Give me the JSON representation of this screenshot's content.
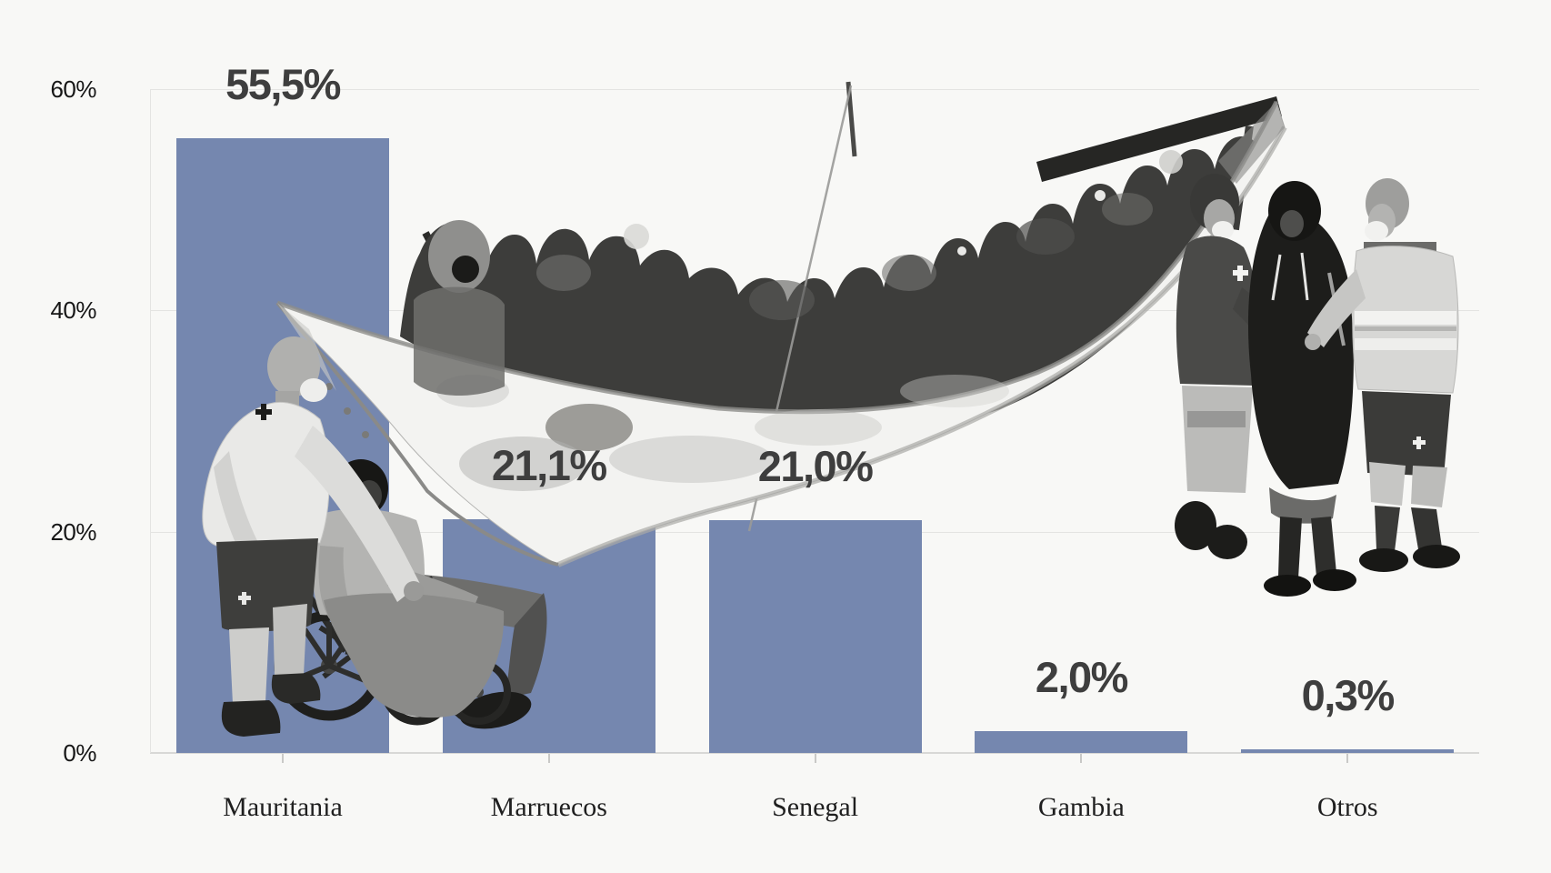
{
  "page": {
    "background": "#f8f8f6"
  },
  "chart_data": {
    "type": "bar",
    "categories": [
      "Mauritania",
      "Marruecos",
      "Senegal",
      "Gambia",
      "Otros"
    ],
    "values": [
      55.5,
      21.1,
      21.0,
      2.0,
      0.3
    ],
    "value_labels": [
      "55,5%",
      "21,1%",
      "21,0%",
      "2,0%",
      "0,3%"
    ],
    "y_ticks": [
      {
        "value": 0,
        "label": "0%"
      },
      {
        "value": 20,
        "label": "20%"
      },
      {
        "value": 40,
        "label": "40%"
      },
      {
        "value": 60,
        "label": "60%"
      }
    ],
    "ylim": [
      0,
      60
    ],
    "xlabel": "",
    "ylabel": "",
    "grid": true,
    "legend": "none",
    "bar_color": "#7587af",
    "value_label_color": "#3e3e3e",
    "axis_text_color": "#161616",
    "grid_color": "#e4e4e2",
    "baseline_color": "#d8d8d6",
    "background_color": "#f8f8f6"
  },
  "collage": {
    "style": "black-and-white cutout photo collage",
    "items": [
      {
        "name": "cayuco-boat-full-of-migrants"
      },
      {
        "name": "red-cross-worker-pushing-man-in-wheelchair"
      },
      {
        "name": "red-cross-workers-assisting-migrant"
      }
    ]
  }
}
